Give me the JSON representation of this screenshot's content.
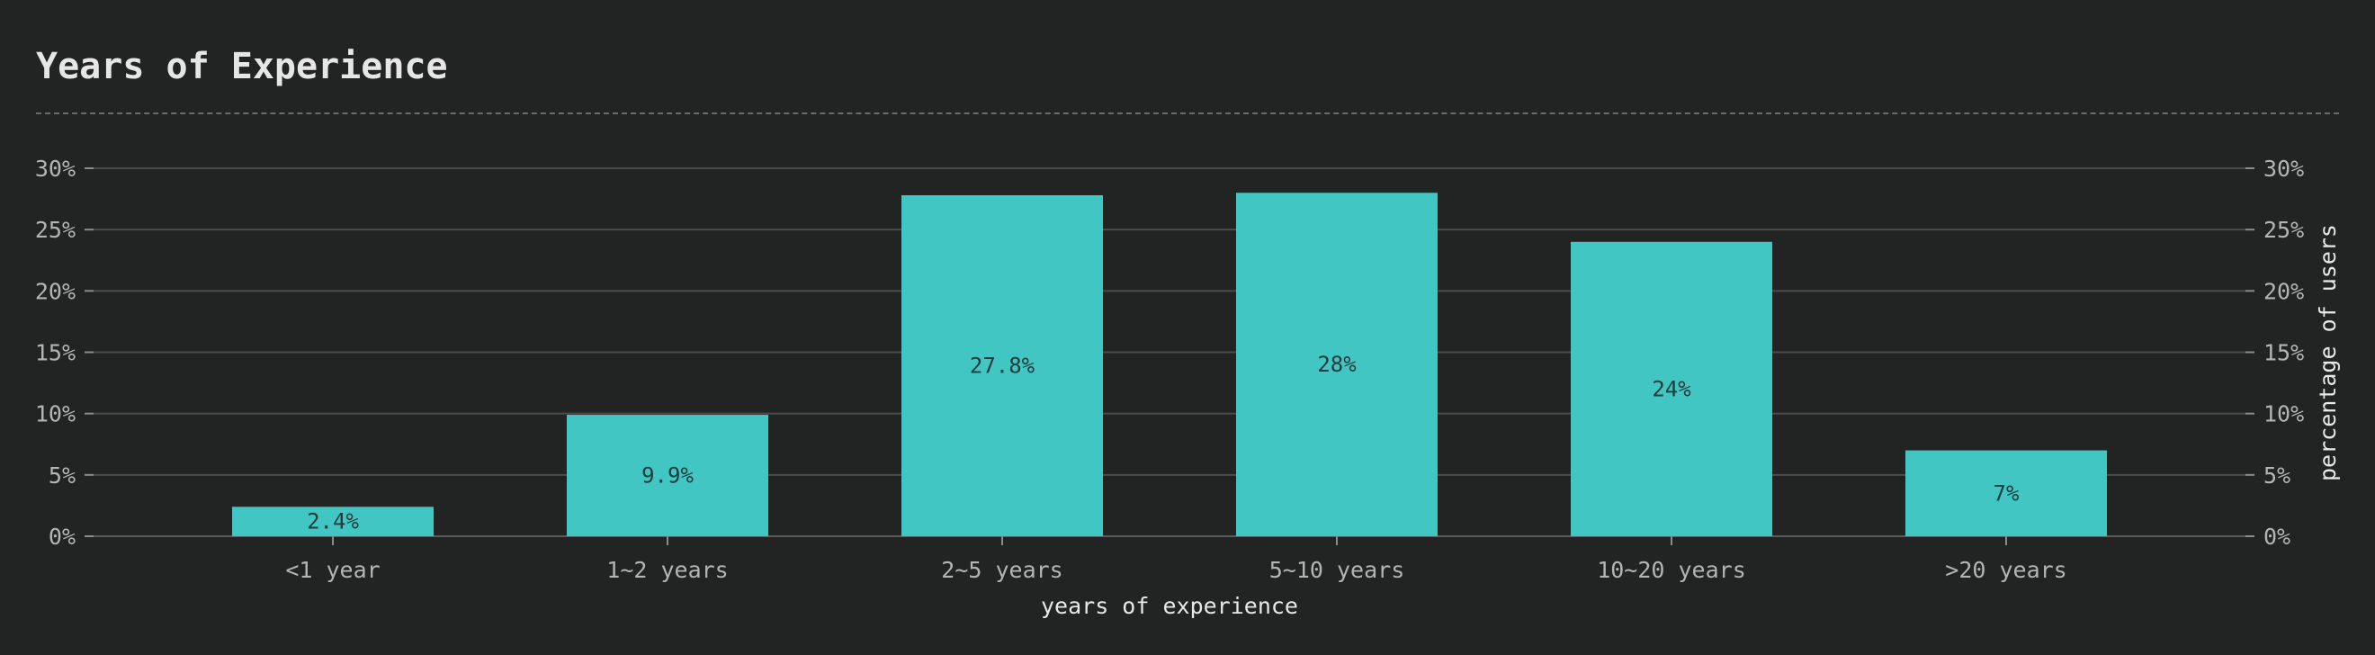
{
  "chart_data": {
    "type": "bar",
    "title": "Years of Experience",
    "xlabel": "years of experience",
    "ylabel": "percentage of users",
    "categories": [
      "<1 year",
      "1~2 years",
      "2~5 years",
      "5~10 years",
      "10~20 years",
      ">20 years"
    ],
    "values": [
      2.4,
      9.9,
      27.8,
      28,
      24,
      7
    ],
    "value_labels": [
      "2.4%",
      "9.9%",
      "27.8%",
      "28%",
      "24%",
      "7%"
    ],
    "ylim": [
      0,
      30
    ],
    "yticks": [
      0,
      5,
      10,
      15,
      20,
      25,
      30
    ],
    "ytick_labels": [
      "0%",
      "5%",
      "10%",
      "15%",
      "20%",
      "25%",
      "30%"
    ],
    "grid": true,
    "y_axis_sides": "left and right",
    "colors": {
      "background": "#222423",
      "bar": "#41c6c4",
      "grid": "#4a4c4b",
      "text": "#b3b5b4"
    }
  }
}
